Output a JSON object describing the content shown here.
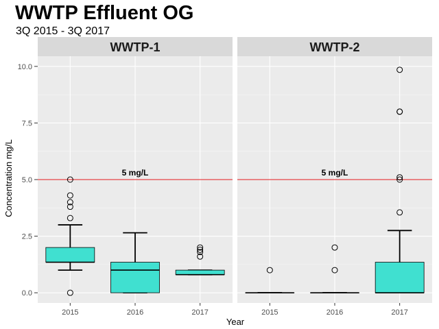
{
  "chart_data": {
    "type": "boxplot",
    "title": "WWTP Effluent OG",
    "subtitle": "3Q 2015 - 3Q 2017",
    "xlabel": "Year",
    "ylabel": "Concentration mg/L",
    "categories": [
      "2015",
      "2016",
      "2017"
    ],
    "ylim": [
      -0.45,
      10.45
    ],
    "yticks": [
      0.0,
      2.5,
      5.0,
      7.5,
      10.0
    ],
    "ytick_labels": [
      "0.0",
      "2.5",
      "5.0",
      "7.5",
      "10.0"
    ],
    "reference_line": {
      "value": 5,
      "label": "5 mg/L",
      "color": "#e41a1c"
    },
    "box_fill": "#40e0d0",
    "panel_background": "#ebebeb",
    "strip_background": "#d9d9d9",
    "grid": true,
    "panels": [
      {
        "name": "WWTP-1",
        "boxes": [
          {
            "x": "2015",
            "lower_whisker": 1.0,
            "q1": 1.35,
            "median": 1.35,
            "q3": 2.0,
            "upper_whisker": 3.0,
            "outliers": [
              5.0,
              4.3,
              4.0,
              3.8,
              3.3,
              0.0
            ]
          },
          {
            "x": "2016",
            "lower_whisker": 0.0,
            "q1": 0.0,
            "median": 1.0,
            "q3": 1.35,
            "upper_whisker": 2.65,
            "outliers": []
          },
          {
            "x": "2017",
            "lower_whisker": 0.8,
            "q1": 0.8,
            "median": 0.8,
            "q3": 1.0,
            "upper_whisker": 1.0,
            "outliers": [
              2.0,
              1.9,
              1.8,
              1.6
            ]
          }
        ]
      },
      {
        "name": "WWTP-2",
        "boxes": [
          {
            "x": "2015",
            "lower_whisker": 0.0,
            "q1": 0.0,
            "median": 0.0,
            "q3": 0.0,
            "upper_whisker": 0.0,
            "outliers": [
              1.0
            ]
          },
          {
            "x": "2016",
            "lower_whisker": 0.0,
            "q1": 0.0,
            "median": 0.0,
            "q3": 0.0,
            "upper_whisker": 0.0,
            "outliers": [
              2.0,
              1.0
            ]
          },
          {
            "x": "2017",
            "lower_whisker": 0.0,
            "q1": 0.0,
            "median": 0.0,
            "q3": 1.35,
            "upper_whisker": 2.75,
            "outliers": [
              9.85,
              8.0,
              8.0,
              5.1,
              5.0,
              3.55
            ]
          }
        ]
      }
    ]
  }
}
